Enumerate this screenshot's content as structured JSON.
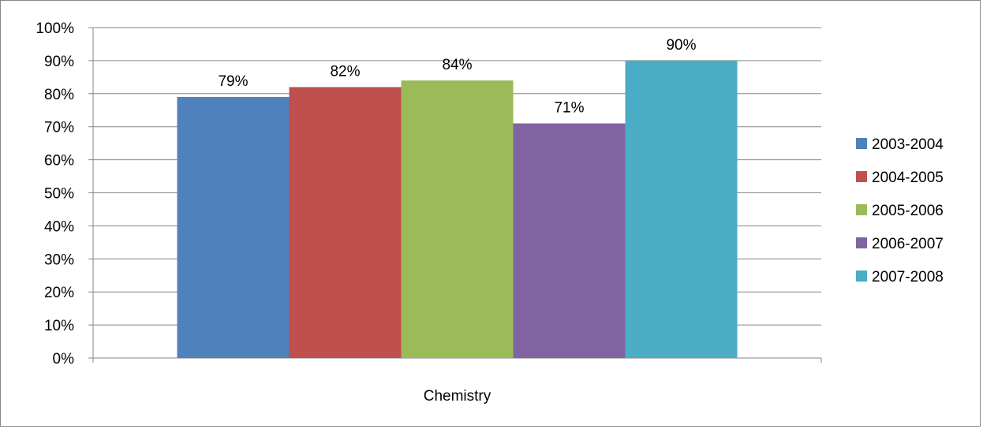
{
  "chart_data": {
    "type": "bar",
    "categories": [
      "Chemistry"
    ],
    "series": [
      {
        "name": "2003-2004",
        "values": [
          79
        ],
        "color": "#4F81BD"
      },
      {
        "name": "2004-2005",
        "values": [
          82
        ],
        "color": "#C0504D"
      },
      {
        "name": "2005-2006",
        "values": [
          84
        ],
        "color": "#9BBB59"
      },
      {
        "name": "2006-2007",
        "values": [
          71
        ],
        "color": "#8064A2"
      },
      {
        "name": "2007-2008",
        "values": [
          90
        ],
        "color": "#4BACC6"
      }
    ],
    "data_labels": [
      "79%",
      "82%",
      "84%",
      "71%",
      "90%"
    ],
    "y_ticks": [
      "0%",
      "10%",
      "20%",
      "30%",
      "40%",
      "50%",
      "60%",
      "70%",
      "80%",
      "90%",
      "100%"
    ],
    "ylim": [
      0,
      100
    ],
    "grid": true,
    "legend_position": "right",
    "title": "",
    "xlabel": "",
    "ylabel": ""
  }
}
